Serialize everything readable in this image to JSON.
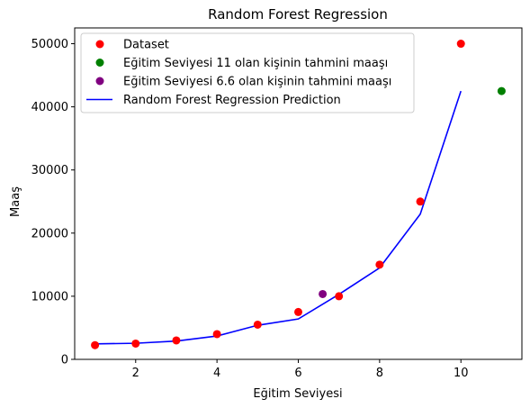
{
  "chart_data": {
    "type": "scatter",
    "title": "Random Forest Regression",
    "xlabel": "Eğitim Seviyesi",
    "ylabel": "Maaş",
    "xlim": [
      0.5,
      11.5
    ],
    "ylim": [
      0,
      52500
    ],
    "xticks": [
      2,
      4,
      6,
      8,
      10
    ],
    "yticks": [
      0,
      10000,
      20000,
      30000,
      40000,
      50000
    ],
    "grid": false,
    "legend_position": "top-left",
    "series": [
      {
        "name": "Dataset",
        "kind": "scatter",
        "color": "#ff0000",
        "x": [
          1,
          2,
          3,
          4,
          5,
          6,
          7,
          8,
          9,
          10
        ],
        "y": [
          2250,
          2500,
          3000,
          4000,
          5500,
          7500,
          10000,
          15000,
          25000,
          50000
        ]
      },
      {
        "name": "Eğitim Seviyesi 11 olan kişinin tahmini maaşı",
        "kind": "scatter",
        "color": "#008000",
        "x": [
          11
        ],
        "y": [
          42500
        ]
      },
      {
        "name": "Eğitim Seviyesi 6.6 olan kişinin tahmini maaşı",
        "kind": "scatter",
        "color": "#800080",
        "x": [
          6.6
        ],
        "y": [
          10350
        ]
      },
      {
        "name": "Random Forest Regression Prediction",
        "kind": "line",
        "color": "#0000ff",
        "x": [
          1,
          2,
          3,
          4,
          5,
          6,
          7,
          8,
          9,
          10
        ],
        "y": [
          2450,
          2550,
          2900,
          3700,
          5400,
          6400,
          10300,
          14500,
          23000,
          42500
        ]
      }
    ]
  }
}
